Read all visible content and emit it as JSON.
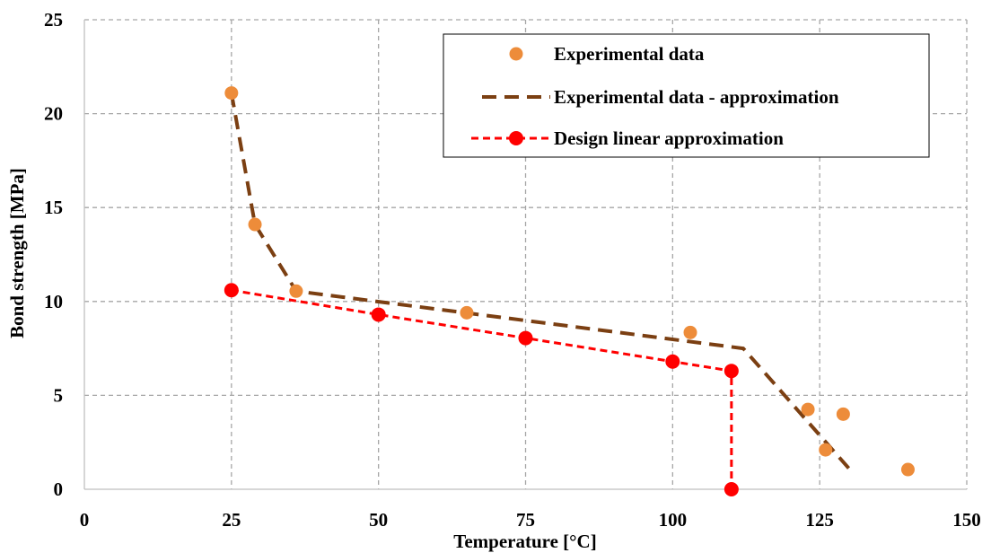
{
  "chart_data": {
    "type": "scatter",
    "title": "",
    "xlabel": "Temperature [°C]",
    "ylabel": "Bond strength [MPa]",
    "xlim": [
      0,
      150
    ],
    "ylim": [
      0,
      25
    ],
    "xticks": [
      0,
      25,
      50,
      75,
      100,
      125,
      150
    ],
    "yticks": [
      0,
      5,
      10,
      15,
      20,
      25
    ],
    "grid": true,
    "legend_position": "top-right",
    "series": [
      {
        "name": "Experimental data",
        "style": "markers",
        "color": "#ED8C3A",
        "points": [
          [
            25,
            21.1
          ],
          [
            29,
            14.1
          ],
          [
            36,
            10.55
          ],
          [
            65,
            9.4
          ],
          [
            103,
            8.35
          ],
          [
            123,
            4.25
          ],
          [
            126,
            2.1
          ],
          [
            129,
            4.0
          ],
          [
            140,
            1.05
          ]
        ]
      },
      {
        "name": "Experimental data - approximation",
        "style": "dashed-line",
        "color": "#7B3F12",
        "points": [
          [
            25,
            21.1
          ],
          [
            29,
            14.1
          ],
          [
            36,
            10.55
          ],
          [
            112,
            7.5
          ],
          [
            130,
            1.1
          ]
        ]
      },
      {
        "name": "Design linear approximation",
        "style": "dashed-line-markers",
        "color": "#FF0000",
        "points": [
          [
            25,
            10.6
          ],
          [
            50,
            9.3
          ],
          [
            75,
            8.05
          ],
          [
            100,
            6.8
          ],
          [
            110,
            6.3
          ],
          [
            110,
            0
          ]
        ]
      }
    ]
  }
}
